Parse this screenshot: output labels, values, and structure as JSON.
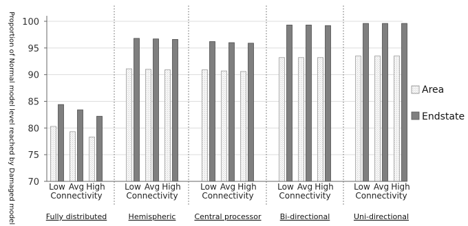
{
  "chart_data": {
    "type": "bar",
    "ylabel": "Proportion of Normal model level reached by Damaged model",
    "ylim": [
      70,
      100
    ],
    "yticks": [
      70,
      75,
      80,
      85,
      90,
      95,
      100
    ],
    "connectivity_label": "Connectivity",
    "connectivity_levels": [
      "Low",
      "Avg",
      "High"
    ],
    "groups": [
      {
        "label": "Fully distributed",
        "area": [
          80.3,
          79.3,
          78.3
        ],
        "endstate": [
          84.4,
          83.4,
          82.2
        ]
      },
      {
        "label": "Hemispheric",
        "area": [
          91.1,
          91.0,
          90.9
        ],
        "endstate": [
          96.8,
          96.7,
          96.6
        ]
      },
      {
        "label": "Central processor",
        "area": [
          90.9,
          90.7,
          90.6
        ],
        "endstate": [
          96.2,
          96.0,
          95.9
        ]
      },
      {
        "label": "Bi-directional",
        "area": [
          93.2,
          93.2,
          93.2
        ],
        "endstate": [
          99.3,
          99.3,
          99.2
        ]
      },
      {
        "label": "Uni-directional",
        "area": [
          93.5,
          93.5,
          93.5
        ],
        "endstate": [
          99.6,
          99.6,
          99.6
        ]
      }
    ],
    "series": [
      {
        "name": "Area",
        "color": "#f4f4f4"
      },
      {
        "name": "Endstate",
        "color": "#7f7f7f"
      }
    ],
    "grid": true,
    "legend": "right"
  }
}
